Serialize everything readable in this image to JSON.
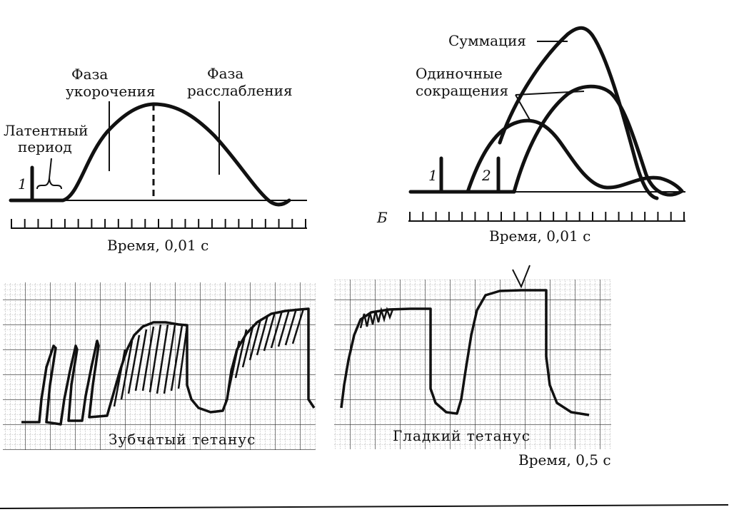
{
  "panel_a": {
    "latent_label": "Латентный период",
    "latent_line1": "Латентный",
    "latent_line2": "период",
    "shortening_line1": "Фаза",
    "shortening_line2": "укорочения",
    "relaxation_line1": "Фаза",
    "relaxation_line2": "расслабления",
    "stimulus_num": "1",
    "time_label": "Время, 0,01 с",
    "ticks": 23
  },
  "panel_b": {
    "panel_letter": "Б",
    "summation_label": "Суммация",
    "single_line1": "Одиночные",
    "single_line2": "сокращения",
    "stimulus1_num": "1",
    "stimulus2_num": "2",
    "time_label": "Время,  0,01 с",
    "ticks": 22
  },
  "tetanus": {
    "toothed_label": "Зубчатый тетанус",
    "smooth_label": "Гладкий тетанус",
    "time_label": "Время, 0,5 с",
    "grid_color": "#333333"
  }
}
